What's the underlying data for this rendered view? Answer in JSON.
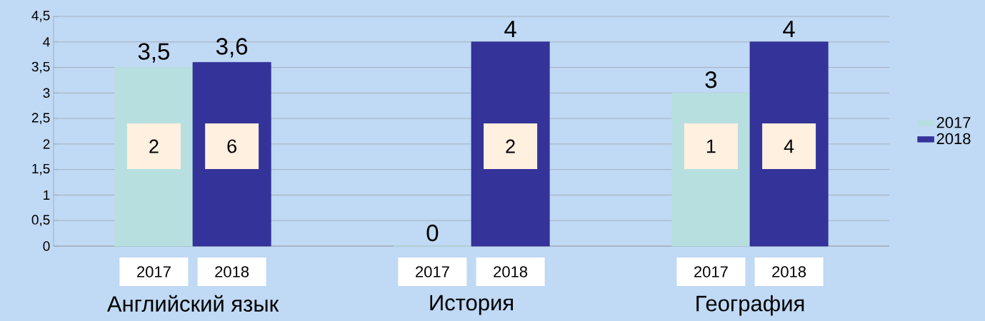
{
  "chart_data": {
    "type": "bar",
    "categories": [
      "Английский язык",
      "История",
      "География"
    ],
    "series": [
      {
        "name": "2017",
        "color": "#b8dfe0",
        "values": [
          3.5,
          0,
          3
        ],
        "value_labels": [
          "3,5",
          "0",
          "3"
        ]
      },
      {
        "name": "2018",
        "color": "#333399",
        "values": [
          3.6,
          4,
          4
        ],
        "value_labels": [
          "3,6",
          "4",
          "4"
        ]
      }
    ],
    "ylim": [
      0,
      4.5
    ],
    "yticks": [
      0,
      {
        "value": 0.5,
        "label": "0,5"
      },
      1,
      {
        "value": 1.5,
        "label": "1,5"
      },
      2,
      {
        "value": 2.5,
        "label": "2,5"
      },
      3,
      {
        "value": 3.5,
        "label": "3,5"
      },
      4,
      {
        "value": 4.5,
        "label": "4,5"
      }
    ],
    "grid": "y",
    "legend": "right",
    "annotations": [
      "2",
      "6",
      "2",
      "1",
      "4",
      "2017",
      "2018",
      "2017",
      "2018",
      "2017",
      "2018"
    ]
  }
}
